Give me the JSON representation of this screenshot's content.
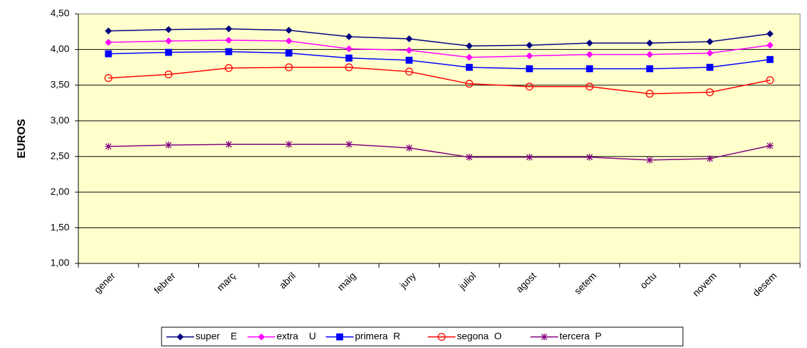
{
  "chart_data": {
    "type": "line",
    "y_label": "EUROS",
    "categories": [
      "gener",
      "febrer",
      "març",
      "abril",
      "maig",
      "juny",
      "juliol",
      "agost",
      "setem",
      "octu",
      "novem",
      "desem"
    ],
    "series": [
      {
        "name": "super    E",
        "color": "#000080",
        "marker": "diamond",
        "values": [
          4.26,
          4.28,
          4.29,
          4.27,
          4.18,
          4.15,
          4.05,
          4.06,
          4.09,
          4.09,
          4.11,
          4.22
        ]
      },
      {
        "name": "extra    U",
        "color": "#ff00ff",
        "marker": "diamond",
        "values": [
          4.1,
          4.12,
          4.13,
          4.12,
          4.01,
          3.99,
          3.89,
          3.91,
          3.93,
          3.93,
          3.95,
          4.06
        ]
      },
      {
        "name": "primera  R",
        "color": "#0000ff",
        "marker": "square",
        "values": [
          3.94,
          3.96,
          3.97,
          3.95,
          3.88,
          3.85,
          3.75,
          3.73,
          3.73,
          3.73,
          3.75,
          3.86
        ]
      },
      {
        "name": "segona  O",
        "color": "#ff0000",
        "marker": "circle",
        "values": [
          3.6,
          3.65,
          3.74,
          3.75,
          3.75,
          3.69,
          3.52,
          3.48,
          3.48,
          3.38,
          3.4,
          3.57
        ]
      },
      {
        "name": "tercera  P",
        "color": "#800080",
        "marker": "asterisk",
        "values": [
          2.64,
          2.66,
          2.67,
          2.67,
          2.67,
          2.62,
          2.49,
          2.49,
          2.49,
          2.45,
          2.47,
          2.65
        ]
      }
    ],
    "ylim": [
      1,
      4.5
    ],
    "yticks": [
      {
        "value": 1,
        "label": "1,00"
      },
      {
        "value": 1.5,
        "label": "1,50"
      },
      {
        "value": 2,
        "label": "2,00"
      },
      {
        "value": 2.5,
        "label": "2,50"
      },
      {
        "value": 3,
        "label": "3,00"
      },
      {
        "value": 3.5,
        "label": "3,50"
      },
      {
        "value": 4,
        "label": "4,00"
      },
      {
        "value": 4.5,
        "label": "4,50"
      }
    ],
    "grid": true,
    "legend": "bottom"
  }
}
